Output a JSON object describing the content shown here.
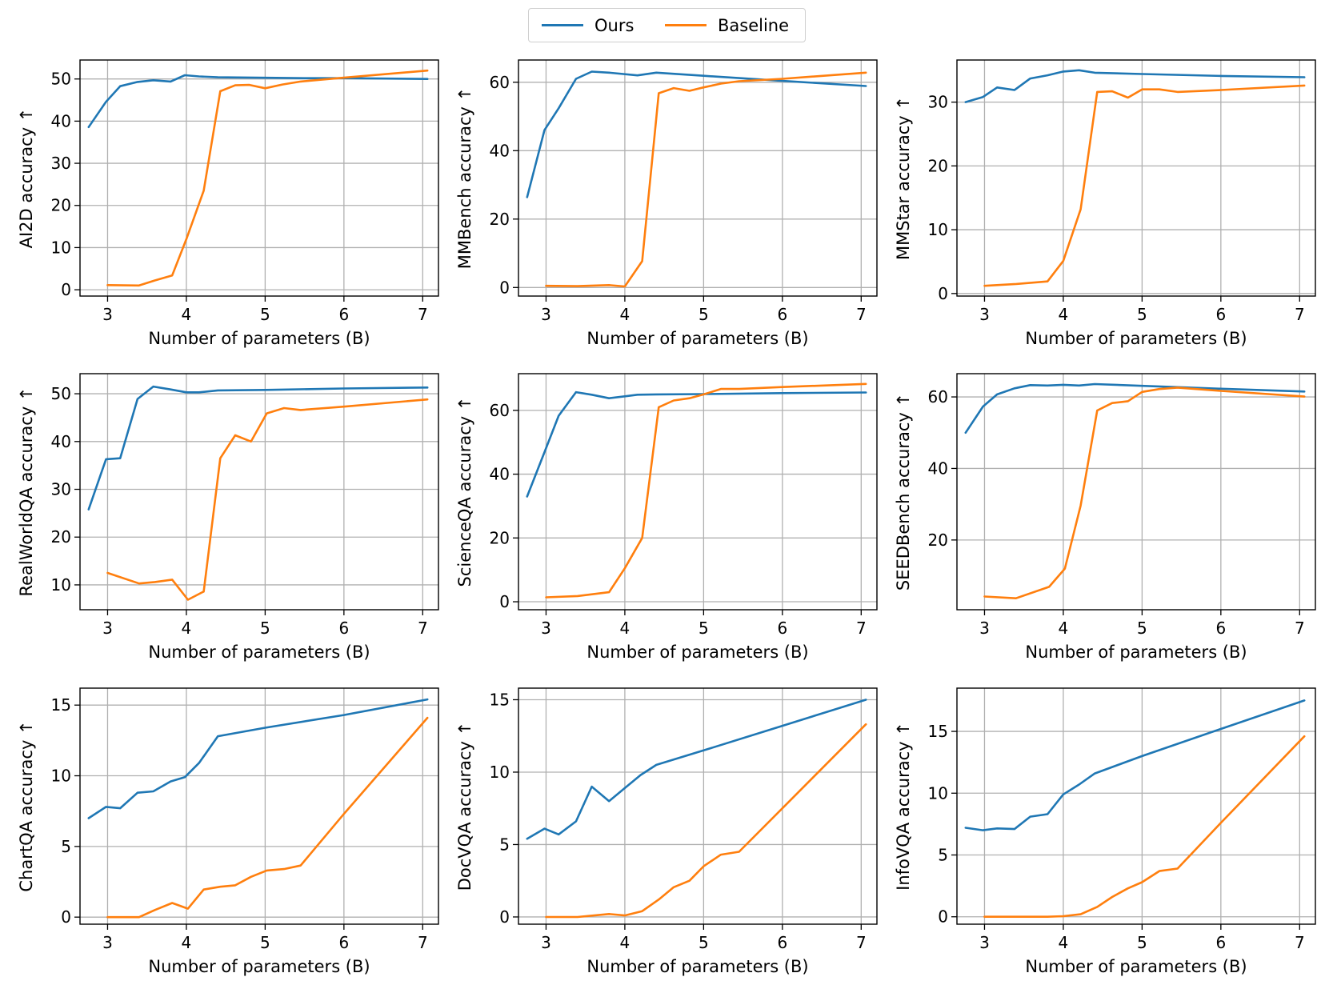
{
  "legend": {
    "series_a": "Ours",
    "series_b": "Baseline"
  },
  "colors": {
    "ours": "#1f77b4",
    "baseline": "#ff7f0e",
    "grid": "#b0b0b0"
  },
  "chart_data": [
    {
      "type": "line",
      "ylabel": "AI2D accuracy ↑",
      "xlabel": "Number of parameters (B)",
      "xlim": [
        2.65,
        7.2
      ],
      "ylim": [
        -1.5,
        54.5
      ],
      "xticks": [
        3,
        4,
        5,
        6,
        7
      ],
      "yticks": [
        0,
        10,
        20,
        30,
        40,
        50
      ],
      "series": [
        {
          "name": "Ours",
          "x": [
            2.76,
            2.98,
            3.16,
            3.38,
            3.58,
            3.8,
            3.98,
            4.16,
            4.4,
            4.9,
            5.5,
            6.0,
            7.06
          ],
          "y": [
            38.6,
            44.6,
            48.3,
            49.3,
            49.7,
            49.4,
            50.9,
            50.6,
            50.4,
            50.3,
            50.2,
            50.2,
            50.0
          ]
        },
        {
          "name": "Baseline",
          "x": [
            3.0,
            3.4,
            3.6,
            3.82,
            4.0,
            4.22,
            4.43,
            4.62,
            4.8,
            5.0,
            5.22,
            5.45,
            6.0,
            7.06
          ],
          "y": [
            1.1,
            1.0,
            2.2,
            3.4,
            12.0,
            23.5,
            47.1,
            48.5,
            48.6,
            47.8,
            48.7,
            49.4,
            50.3,
            52.0
          ]
        }
      ]
    },
    {
      "type": "line",
      "ylabel": "MMBench accuracy ↑",
      "xlabel": "Number of parameters (B)",
      "xlim": [
        2.65,
        7.2
      ],
      "ylim": [
        -2.5,
        66.5
      ],
      "xticks": [
        3,
        4,
        5,
        6,
        7
      ],
      "yticks": [
        0,
        20,
        40,
        60
      ],
      "series": [
        {
          "name": "Ours",
          "x": [
            2.76,
            2.98,
            3.16,
            3.38,
            3.58,
            3.8,
            4.16,
            4.4,
            5.0,
            6.0,
            7.06
          ],
          "y": [
            26.4,
            46.0,
            52.4,
            61.0,
            63.1,
            62.8,
            62.0,
            62.8,
            61.9,
            60.4,
            58.9
          ]
        },
        {
          "name": "Baseline",
          "x": [
            3.0,
            3.4,
            3.8,
            4.0,
            4.22,
            4.43,
            4.62,
            4.82,
            5.0,
            5.22,
            5.45,
            6.0,
            7.06
          ],
          "y": [
            0.5,
            0.4,
            0.7,
            0.3,
            7.7,
            56.8,
            58.3,
            57.5,
            58.5,
            59.6,
            60.3,
            61.0,
            62.8
          ]
        }
      ]
    },
    {
      "type": "line",
      "ylabel": "MMStar accuracy ↑",
      "xlabel": "Number of parameters (B)",
      "xlim": [
        2.65,
        7.2
      ],
      "ylim": [
        -0.4,
        36.6
      ],
      "xticks": [
        3,
        4,
        5,
        6,
        7
      ],
      "yticks": [
        0,
        10,
        20,
        30
      ],
      "series": [
        {
          "name": "Ours",
          "x": [
            2.76,
            2.98,
            3.16,
            3.38,
            3.58,
            3.8,
            4.0,
            4.2,
            4.4,
            5.0,
            6.0,
            7.06
          ],
          "y": [
            30.0,
            30.8,
            32.3,
            31.9,
            33.7,
            34.2,
            34.8,
            35.0,
            34.6,
            34.4,
            34.1,
            33.9
          ]
        },
        {
          "name": "Baseline",
          "x": [
            3.0,
            3.4,
            3.8,
            4.0,
            4.22,
            4.43,
            4.62,
            4.82,
            5.0,
            5.22,
            5.45,
            6.0,
            7.06
          ],
          "y": [
            1.2,
            1.5,
            1.9,
            5.1,
            13.2,
            31.6,
            31.7,
            30.7,
            32.0,
            32.0,
            31.6,
            31.9,
            32.6
          ]
        }
      ]
    },
    {
      "type": "line",
      "ylabel": "RealWorldQA accuracy ↑",
      "xlabel": "Number of parameters (B)",
      "xlim": [
        2.65,
        7.2
      ],
      "ylim": [
        4.8,
        54.2
      ],
      "xticks": [
        3,
        4,
        5,
        6,
        7
      ],
      "yticks": [
        10,
        20,
        30,
        40,
        50
      ],
      "series": [
        {
          "name": "Ours",
          "x": [
            2.76,
            2.98,
            3.16,
            3.38,
            3.58,
            3.8,
            4.0,
            4.16,
            4.4,
            5.0,
            6.0,
            7.06
          ],
          "y": [
            25.8,
            36.3,
            36.5,
            48.9,
            51.5,
            50.9,
            50.3,
            50.3,
            50.7,
            50.8,
            51.1,
            51.3
          ]
        },
        {
          "name": "Baseline",
          "x": [
            3.0,
            3.4,
            3.6,
            3.82,
            4.02,
            4.22,
            4.43,
            4.62,
            4.82,
            5.02,
            5.24,
            5.45,
            6.0,
            7.06
          ],
          "y": [
            12.5,
            10.3,
            10.6,
            11.1,
            6.9,
            8.6,
            36.5,
            41.3,
            40.0,
            45.9,
            47.0,
            46.6,
            47.3,
            48.8
          ]
        }
      ]
    },
    {
      "type": "line",
      "ylabel": "ScienceQA accuracy ↑",
      "xlabel": "Number of parameters (B)",
      "xlim": [
        2.65,
        7.2
      ],
      "ylim": [
        -2.5,
        71.5
      ],
      "xticks": [
        3,
        4,
        5,
        6,
        7
      ],
      "yticks": [
        0,
        20,
        40,
        60
      ],
      "series": [
        {
          "name": "Ours",
          "x": [
            2.76,
            2.98,
            3.16,
            3.38,
            3.58,
            3.8,
            4.0,
            4.16,
            4.4,
            5.0,
            6.0,
            7.06
          ],
          "y": [
            33.0,
            46.9,
            58.3,
            65.7,
            64.9,
            63.8,
            64.4,
            64.9,
            65.0,
            65.1,
            65.4,
            65.6
          ]
        },
        {
          "name": "Baseline",
          "x": [
            3.0,
            3.4,
            3.8,
            4.0,
            4.22,
            4.43,
            4.62,
            4.82,
            5.0,
            5.22,
            5.45,
            6.0,
            7.06
          ],
          "y": [
            1.4,
            1.8,
            3.0,
            10.5,
            20.0,
            61.0,
            63.1,
            63.8,
            65.0,
            66.7,
            66.7,
            67.3,
            68.3
          ]
        }
      ]
    },
    {
      "type": "line",
      "ylabel": "SEEDBench accuracy ↑",
      "xlabel": "Number of parameters (B)",
      "xlim": [
        2.65,
        7.2
      ],
      "ylim": [
        0.5,
        66.5
      ],
      "xticks": [
        3,
        4,
        5,
        6,
        7
      ],
      "yticks": [
        20,
        40,
        60
      ],
      "series": [
        {
          "name": "Ours",
          "x": [
            2.76,
            2.98,
            3.16,
            3.38,
            3.58,
            3.8,
            4.0,
            4.2,
            4.4,
            5.0,
            6.0,
            7.06
          ],
          "y": [
            50.0,
            57.3,
            60.7,
            62.4,
            63.3,
            63.2,
            63.4,
            63.2,
            63.6,
            63.1,
            62.3,
            61.5
          ]
        },
        {
          "name": "Baseline",
          "x": [
            3.0,
            3.4,
            3.82,
            4.02,
            4.22,
            4.43,
            4.62,
            4.82,
            5.0,
            5.22,
            5.45,
            6.0,
            7.06
          ],
          "y": [
            4.2,
            3.7,
            6.9,
            12.0,
            29.6,
            56.2,
            58.3,
            58.8,
            61.4,
            62.2,
            62.6,
            61.7,
            60.1
          ]
        }
      ]
    },
    {
      "type": "line",
      "ylabel": "ChartQA accuracy ↑",
      "xlabel": "Number of parameters (B)",
      "xlim": [
        2.65,
        7.2
      ],
      "ylim": [
        -0.5,
        16.2
      ],
      "xticks": [
        3,
        4,
        5,
        6,
        7
      ],
      "yticks": [
        0,
        5,
        10,
        15
      ],
      "series": [
        {
          "name": "Ours",
          "x": [
            2.76,
            2.98,
            3.16,
            3.38,
            3.58,
            3.8,
            3.98,
            4.16,
            4.4,
            5.0,
            6.0,
            7.06
          ],
          "y": [
            7.0,
            7.8,
            7.7,
            8.8,
            8.9,
            9.6,
            9.9,
            10.9,
            12.8,
            13.4,
            14.3,
            15.4
          ]
        },
        {
          "name": "Baseline",
          "x": [
            3.0,
            3.4,
            3.6,
            3.82,
            4.02,
            4.22,
            4.43,
            4.62,
            4.82,
            5.02,
            5.24,
            5.45,
            6.0,
            7.06
          ],
          "y": [
            0.0,
            0.0,
            0.5,
            1.0,
            0.6,
            1.95,
            2.15,
            2.25,
            2.85,
            3.3,
            3.4,
            3.65,
            7.3,
            14.1
          ]
        }
      ]
    },
    {
      "type": "line",
      "ylabel": "DocVQA accuracy ↑",
      "xlabel": "Number of parameters (B)",
      "xlim": [
        2.65,
        7.2
      ],
      "ylim": [
        -0.5,
        15.8
      ],
      "xticks": [
        3,
        4,
        5,
        6,
        7
      ],
      "yticks": [
        0,
        5,
        10,
        15
      ],
      "series": [
        {
          "name": "Ours",
          "x": [
            2.76,
            2.98,
            3.16,
            3.38,
            3.58,
            3.8,
            4.0,
            4.2,
            4.4,
            5.0,
            6.0,
            7.06
          ],
          "y": [
            5.4,
            6.1,
            5.7,
            6.6,
            9.0,
            8.0,
            8.9,
            9.8,
            10.5,
            11.5,
            13.2,
            15.0
          ]
        },
        {
          "name": "Baseline",
          "x": [
            3.0,
            3.4,
            3.8,
            4.0,
            4.22,
            4.43,
            4.62,
            4.82,
            5.0,
            5.22,
            5.45,
            6.0,
            7.06
          ],
          "y": [
            0.0,
            0.0,
            0.2,
            0.1,
            0.4,
            1.2,
            2.05,
            2.5,
            3.5,
            4.3,
            4.5,
            7.5,
            13.3
          ]
        }
      ]
    },
    {
      "type": "line",
      "ylabel": "InfoVQA accuracy ↑",
      "xlabel": "Number of parameters (B)",
      "xlim": [
        2.65,
        7.2
      ],
      "ylim": [
        -0.6,
        18.5
      ],
      "xticks": [
        3,
        4,
        5,
        6,
        7
      ],
      "yticks": [
        0,
        5,
        10,
        15
      ],
      "series": [
        {
          "name": "Ours",
          "x": [
            2.76,
            2.98,
            3.16,
            3.38,
            3.58,
            3.8,
            4.0,
            4.2,
            4.4,
            5.0,
            6.0,
            7.06
          ],
          "y": [
            7.2,
            7.0,
            7.15,
            7.1,
            8.1,
            8.3,
            9.9,
            10.7,
            11.6,
            13.0,
            15.2,
            17.5
          ]
        },
        {
          "name": "Baseline",
          "x": [
            3.0,
            3.4,
            3.8,
            4.0,
            4.22,
            4.43,
            4.62,
            4.82,
            5.0,
            5.22,
            5.45,
            6.0,
            7.06
          ],
          "y": [
            0.0,
            0.0,
            0.0,
            0.05,
            0.2,
            0.8,
            1.6,
            2.3,
            2.8,
            3.7,
            3.9,
            7.6,
            14.6
          ]
        }
      ]
    }
  ]
}
